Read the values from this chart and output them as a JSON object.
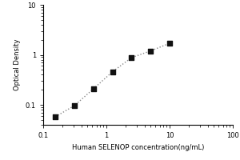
{
  "x_data": [
    0.156,
    0.313,
    0.625,
    1.25,
    2.5,
    5.0,
    10.0
  ],
  "y_data": [
    0.058,
    0.097,
    0.21,
    0.46,
    0.88,
    1.2,
    1.7
  ],
  "xlabel": "Human SELENOP concentration(ng/mL)",
  "ylabel": "Optical Density",
  "xlim": [
    0.1,
    100
  ],
  "ylim": [
    0.04,
    10
  ],
  "xticks": [
    0.1,
    1,
    10,
    100
  ],
  "yticks": [
    0.1,
    1,
    10
  ],
  "marker": "s",
  "marker_color": "#111111",
  "line_color": "#888888",
  "line_style": ":",
  "marker_size": 4,
  "line_width": 1.0,
  "tick_label_fontsize": 6,
  "axis_label_fontsize": 6,
  "background_color": "#ffffff"
}
